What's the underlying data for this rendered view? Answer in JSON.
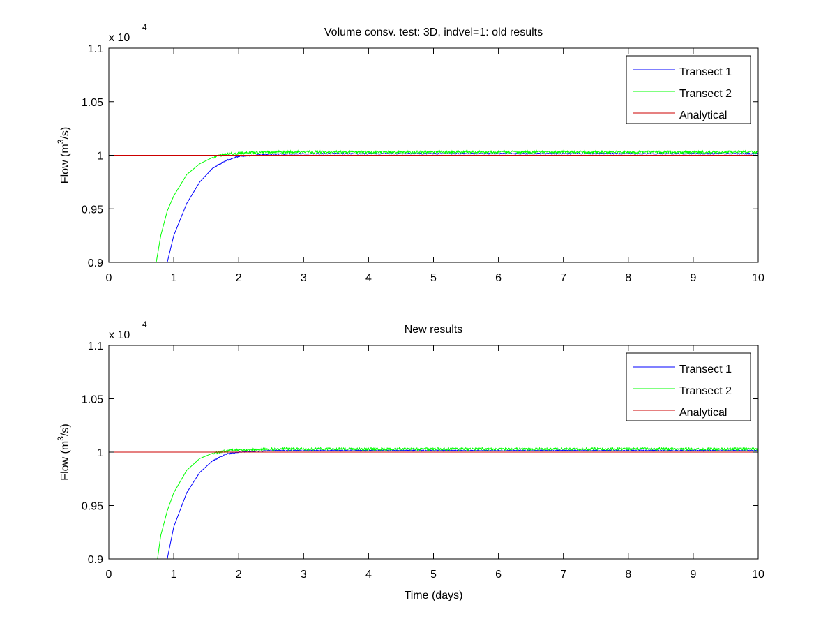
{
  "chart_data": [
    {
      "type": "line",
      "title": "Volume consv. test: 3D, indvel=1: old results",
      "xlabel": "",
      "ylabel": "Flow (m^3/s)",
      "ylabel_parts": {
        "pre": "Flow (m",
        "sup": "3",
        "post": "/s)"
      },
      "y_multiplier": {
        "base": "x 10",
        "exp": "4"
      },
      "xlim": [
        0,
        10
      ],
      "ylim": [
        0.9,
        1.1
      ],
      "xticks": [
        0,
        1,
        2,
        3,
        4,
        5,
        6,
        7,
        8,
        9,
        10
      ],
      "xtick_labels": [
        "0",
        "1",
        "2",
        "3",
        "4",
        "5",
        "6",
        "7",
        "8",
        "9",
        "10"
      ],
      "yticks": [
        0.9,
        0.95,
        1.0,
        1.05,
        1.1
      ],
      "ytick_labels": [
        "0.9",
        "0.95",
        "1",
        "1.05",
        "1.1"
      ],
      "grid": false,
      "legend_position": "top-right",
      "series": [
        {
          "name": "Transect 1",
          "color": "#0000ff",
          "x": [
            0.9,
            1.0,
            1.2,
            1.4,
            1.6,
            1.8,
            2.0,
            2.5,
            3,
            4,
            5,
            6,
            7,
            8,
            9,
            10
          ],
          "values": [
            0.9,
            0.925,
            0.955,
            0.975,
            0.988,
            0.995,
            0.999,
            1.001,
            1.0015,
            1.0015,
            1.0015,
            1.0015,
            1.0015,
            1.0015,
            1.0015,
            1.0015
          ]
        },
        {
          "name": "Transect 2",
          "color": "#00ff00",
          "x": [
            0.73,
            0.8,
            0.9,
            1.0,
            1.2,
            1.4,
            1.6,
            1.8,
            2.0,
            2.5,
            3,
            4,
            5,
            6,
            7,
            8,
            9,
            10
          ],
          "values": [
            0.9,
            0.925,
            0.948,
            0.962,
            0.982,
            0.992,
            0.998,
            1.001,
            1.002,
            1.003,
            1.003,
            1.003,
            1.003,
            1.003,
            1.003,
            1.003,
            1.003,
            1.003
          ]
        },
        {
          "name": "Analytical",
          "color": "#cc0000",
          "x": [
            0,
            10
          ],
          "values": [
            1.0,
            1.0
          ]
        }
      ]
    },
    {
      "type": "line",
      "title": "New results",
      "xlabel": "Time (days)",
      "ylabel": "Flow (m^3/s)",
      "ylabel_parts": {
        "pre": "Flow (m",
        "sup": "3",
        "post": "/s)"
      },
      "y_multiplier": {
        "base": "x 10",
        "exp": "4"
      },
      "xlim": [
        0,
        10
      ],
      "ylim": [
        0.9,
        1.1
      ],
      "xticks": [
        0,
        1,
        2,
        3,
        4,
        5,
        6,
        7,
        8,
        9,
        10
      ],
      "xtick_labels": [
        "0",
        "1",
        "2",
        "3",
        "4",
        "5",
        "6",
        "7",
        "8",
        "9",
        "10"
      ],
      "yticks": [
        0.9,
        0.95,
        1.0,
        1.05,
        1.1
      ],
      "ytick_labels": [
        "0.9",
        "0.95",
        "1",
        "1.05",
        "1.1"
      ],
      "grid": false,
      "legend_position": "top-right",
      "series": [
        {
          "name": "Transect 1",
          "color": "#0000ff",
          "x": [
            0.9,
            1.0,
            1.2,
            1.4,
            1.6,
            1.8,
            2.0,
            2.5,
            3,
            4,
            5,
            6,
            7,
            8,
            9,
            10
          ],
          "values": [
            0.9,
            0.93,
            0.962,
            0.981,
            0.992,
            0.998,
            1.0,
            1.0015,
            1.0015,
            1.0015,
            1.0015,
            1.0015,
            1.0015,
            1.0015,
            1.0015,
            1.0015
          ]
        },
        {
          "name": "Transect 2",
          "color": "#00ff00",
          "x": [
            0.75,
            0.8,
            0.9,
            1.0,
            1.2,
            1.4,
            1.6,
            1.8,
            2.0,
            2.5,
            3,
            4,
            5,
            6,
            7,
            8,
            9,
            10
          ],
          "values": [
            0.9,
            0.922,
            0.945,
            0.962,
            0.983,
            0.994,
            0.999,
            1.001,
            1.002,
            1.003,
            1.003,
            1.003,
            1.003,
            1.003,
            1.003,
            1.003,
            1.003,
            1.003
          ]
        },
        {
          "name": "Analytical",
          "color": "#cc0000",
          "x": [
            0,
            10
          ],
          "values": [
            1.0,
            1.0
          ]
        }
      ]
    }
  ]
}
